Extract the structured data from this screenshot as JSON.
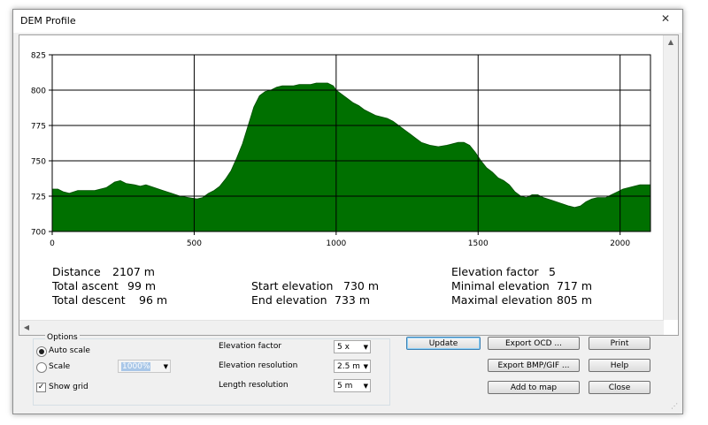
{
  "window": {
    "title": "DEM Profile",
    "close_glyph": "✕"
  },
  "chart_data": {
    "type": "area",
    "xlabel": "",
    "ylabel": "",
    "xlim": [
      0,
      2107
    ],
    "ylim": [
      700,
      825
    ],
    "x_ticks": [
      "0",
      "500",
      "1000",
      "1500",
      "2000"
    ],
    "y_ticks": [
      "825",
      "800",
      "775",
      "750",
      "725",
      "700"
    ],
    "grid": true,
    "fill_color": "#007000",
    "series": [
      {
        "points": [
          [
            0,
            730
          ],
          [
            20,
            730
          ],
          [
            40,
            728
          ],
          [
            60,
            727
          ],
          [
            90,
            729
          ],
          [
            120,
            729
          ],
          [
            150,
            729
          ],
          [
            190,
            731
          ],
          [
            220,
            735
          ],
          [
            240,
            736
          ],
          [
            260,
            734
          ],
          [
            290,
            733
          ],
          [
            310,
            732
          ],
          [
            330,
            733
          ],
          [
            360,
            731
          ],
          [
            390,
            729
          ],
          [
            420,
            727
          ],
          [
            450,
            725
          ],
          [
            480,
            724
          ],
          [
            510,
            723
          ],
          [
            530,
            724
          ],
          [
            550,
            727
          ],
          [
            570,
            729
          ],
          [
            590,
            732
          ],
          [
            610,
            737
          ],
          [
            630,
            743
          ],
          [
            650,
            752
          ],
          [
            670,
            762
          ],
          [
            690,
            775
          ],
          [
            710,
            788
          ],
          [
            730,
            796
          ],
          [
            750,
            799
          ],
          [
            770,
            800
          ],
          [
            790,
            802
          ],
          [
            810,
            803
          ],
          [
            830,
            803
          ],
          [
            850,
            803
          ],
          [
            870,
            804
          ],
          [
            890,
            804
          ],
          [
            910,
            804
          ],
          [
            930,
            805
          ],
          [
            950,
            805
          ],
          [
            970,
            805
          ],
          [
            990,
            803
          ],
          [
            1000,
            800
          ],
          [
            1020,
            797
          ],
          [
            1040,
            794
          ],
          [
            1060,
            791
          ],
          [
            1080,
            789
          ],
          [
            1100,
            786
          ],
          [
            1120,
            784
          ],
          [
            1140,
            782
          ],
          [
            1160,
            781
          ],
          [
            1180,
            780
          ],
          [
            1200,
            778
          ],
          [
            1220,
            775
          ],
          [
            1240,
            772
          ],
          [
            1260,
            769
          ],
          [
            1280,
            766
          ],
          [
            1300,
            763
          ],
          [
            1330,
            761
          ],
          [
            1360,
            760
          ],
          [
            1390,
            761
          ],
          [
            1410,
            762
          ],
          [
            1430,
            763
          ],
          [
            1450,
            763
          ],
          [
            1470,
            761
          ],
          [
            1490,
            756
          ],
          [
            1510,
            750
          ],
          [
            1530,
            745
          ],
          [
            1550,
            742
          ],
          [
            1570,
            738
          ],
          [
            1590,
            736
          ],
          [
            1610,
            733
          ],
          [
            1630,
            728
          ],
          [
            1650,
            725
          ],
          [
            1670,
            724
          ],
          [
            1690,
            726
          ],
          [
            1710,
            726
          ],
          [
            1730,
            724
          ],
          [
            1760,
            722
          ],
          [
            1790,
            720
          ],
          [
            1820,
            718
          ],
          [
            1840,
            717
          ],
          [
            1860,
            718
          ],
          [
            1880,
            721
          ],
          [
            1900,
            723
          ],
          [
            1920,
            724
          ],
          [
            1950,
            724
          ],
          [
            1970,
            726
          ],
          [
            1990,
            728
          ],
          [
            2010,
            730
          ],
          [
            2030,
            731
          ],
          [
            2050,
            732
          ],
          [
            2070,
            733
          ],
          [
            2090,
            733
          ],
          [
            2107,
            733
          ]
        ]
      }
    ]
  },
  "stats": {
    "distance_label": "Distance",
    "distance_value": "2107 m",
    "ascent_label": "Total ascent",
    "ascent_value": "99 m",
    "descent_label": "Total descent",
    "descent_value": "96 m",
    "start_label": "Start elevation",
    "start_value": "730 m",
    "end_label": "End elevation",
    "end_value": "733 m",
    "factor_label": "Elevation factor",
    "factor_value": "5",
    "min_label": "Minimal elevation",
    "min_value": "717 m",
    "max_label": "Maximal elevation",
    "max_value": "805 m"
  },
  "options": {
    "group_label": "Options",
    "auto_scale_label": "Auto scale",
    "scale_label": "Scale",
    "scale_value": "1000%",
    "show_grid_label": "Show grid",
    "elev_factor_label": "Elevation factor",
    "elev_factor_value": "5 x",
    "elev_res_label": "Elevation resolution",
    "elev_res_value": "2.5 m",
    "len_res_label": "Length resolution",
    "len_res_value": "5 m"
  },
  "buttons": {
    "update": "Update",
    "export_ocd": "Export OCD ...",
    "print": "Print",
    "export_bmp": "Export BMP/GIF ...",
    "help": "Help",
    "add_to_map": "Add to map",
    "close": "Close"
  }
}
